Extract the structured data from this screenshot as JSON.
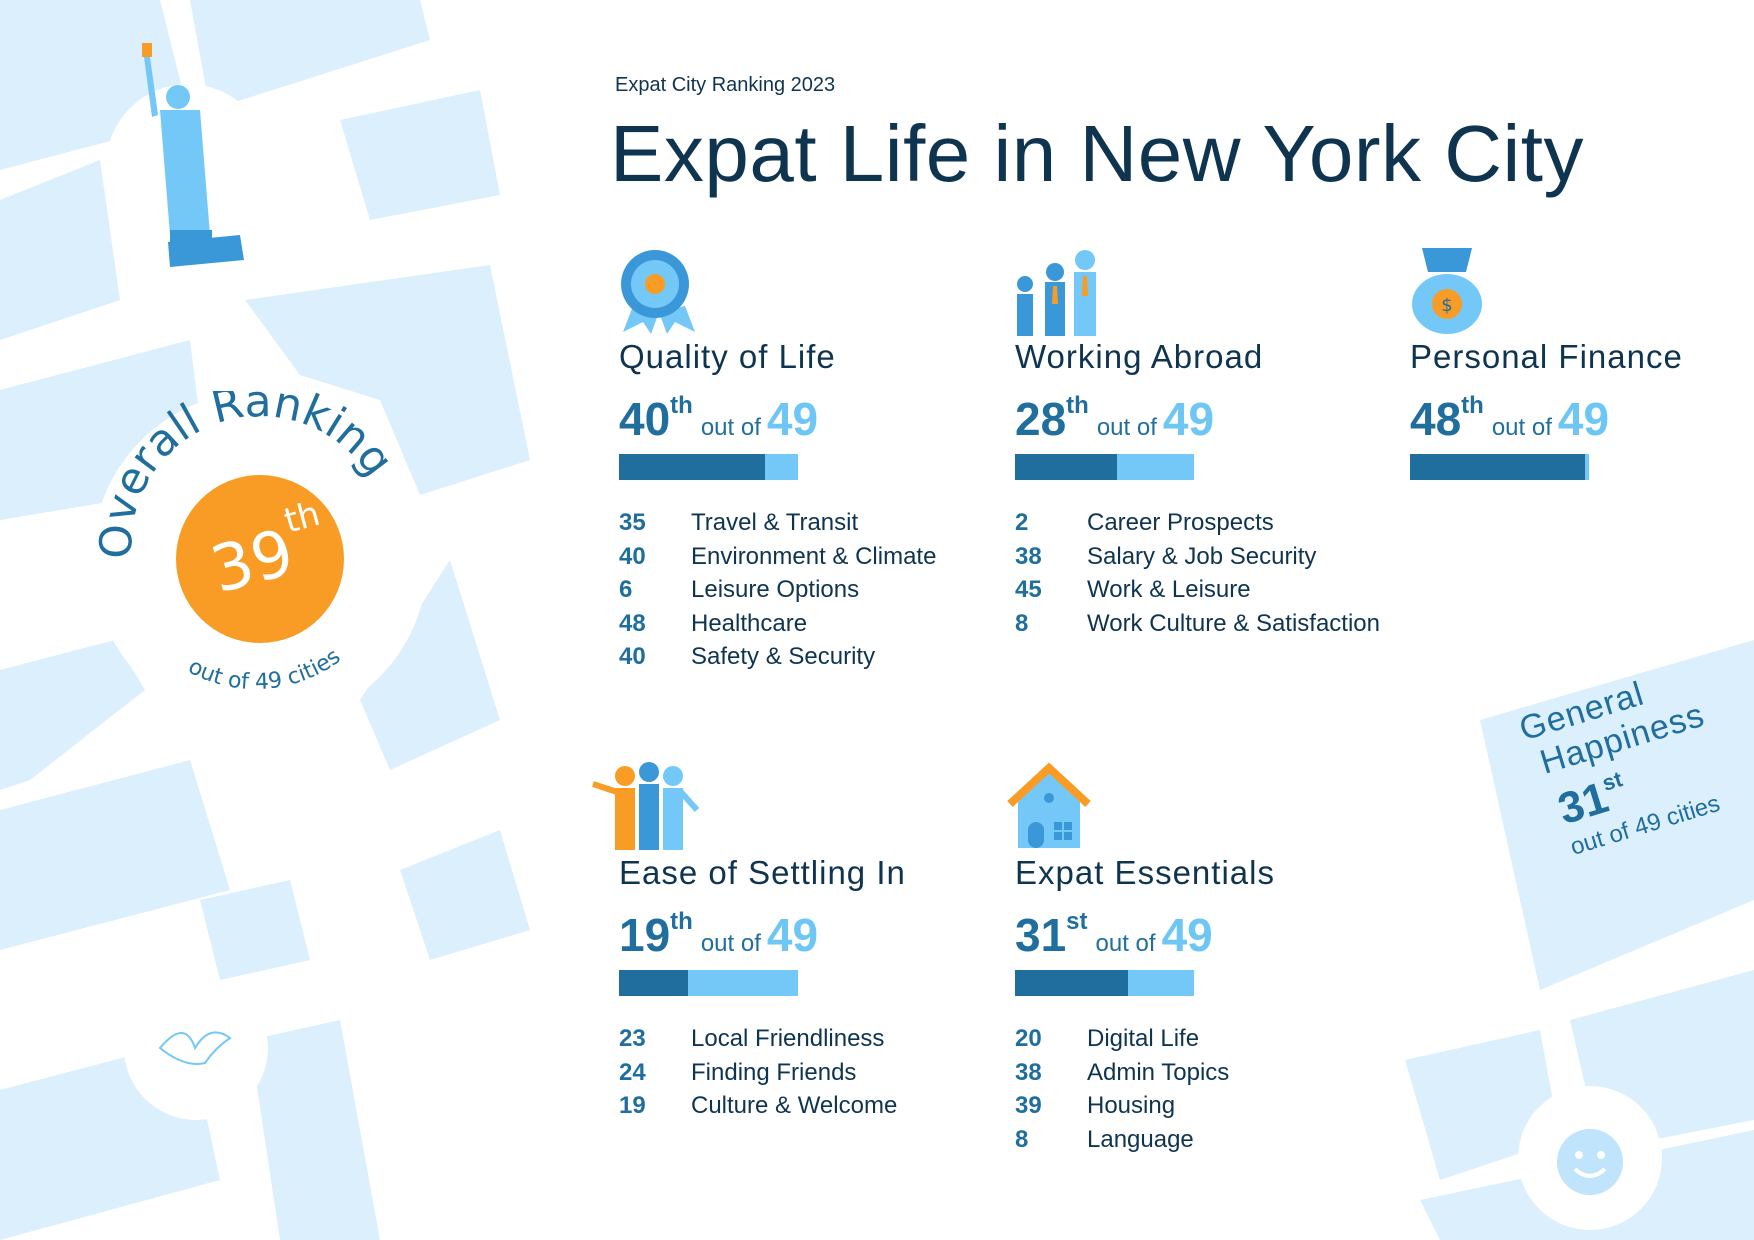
{
  "header": {
    "subtitle": "Expat City Ranking 2023",
    "title": "Expat Life in New York City"
  },
  "overall": {
    "label": "Overall Ranking",
    "rank": "39",
    "suffix": "th",
    "out_of": "out of 49 cities"
  },
  "colors": {
    "dark": "#1f6e9e",
    "light": "#74c8f7",
    "orange": "#f89c25",
    "map": "#dbeffc",
    "text": "#0f3450"
  },
  "total": "49",
  "out_of_label": "out of",
  "categories": [
    {
      "title": "Quality of Life",
      "rank": "40",
      "suffix": "th",
      "fraction": 0.816,
      "icon": "ribbon-badge-icon",
      "items": [
        {
          "n": "35",
          "label": "Travel & Transit"
        },
        {
          "n": "40",
          "label": "Environment & Climate"
        },
        {
          "n": "6",
          "label": "Leisure Options"
        },
        {
          "n": "48",
          "label": "Healthcare"
        },
        {
          "n": "40",
          "label": "Safety & Security"
        }
      ]
    },
    {
      "title": "Working Abroad",
      "rank": "28",
      "suffix": "th",
      "fraction": 0.571,
      "icon": "business-people-icon",
      "items": [
        {
          "n": "2",
          "label": "Career Prospects"
        },
        {
          "n": "38",
          "label": "Salary & Job Security"
        },
        {
          "n": "45",
          "label": "Work & Leisure"
        },
        {
          "n": "8",
          "label": "Work Culture & Satisfaction"
        }
      ]
    },
    {
      "title": "Personal Finance",
      "rank": "48",
      "suffix": "th",
      "fraction": 0.98,
      "icon": "money-bag-icon",
      "items": []
    },
    {
      "title": "Ease of Settling In",
      "rank": "19",
      "suffix": "th",
      "fraction": 0.388,
      "icon": "friends-icon",
      "items": [
        {
          "n": "23",
          "label": "Local Friendliness"
        },
        {
          "n": "24",
          "label": "Finding Friends"
        },
        {
          "n": "19",
          "label": "Culture & Welcome"
        }
      ]
    },
    {
      "title": "Expat Essentials",
      "rank": "31",
      "suffix": "st",
      "fraction": 0.633,
      "icon": "house-icon",
      "items": [
        {
          "n": "20",
          "label": "Digital Life"
        },
        {
          "n": "38",
          "label": "Admin Topics"
        },
        {
          "n": "39",
          "label": "Housing"
        },
        {
          "n": "8",
          "label": "Language"
        }
      ]
    }
  ],
  "happiness": {
    "line1": "General",
    "line2": "Happiness",
    "rank": "31",
    "suffix": "st",
    "out_of": "out of 49 cities"
  }
}
